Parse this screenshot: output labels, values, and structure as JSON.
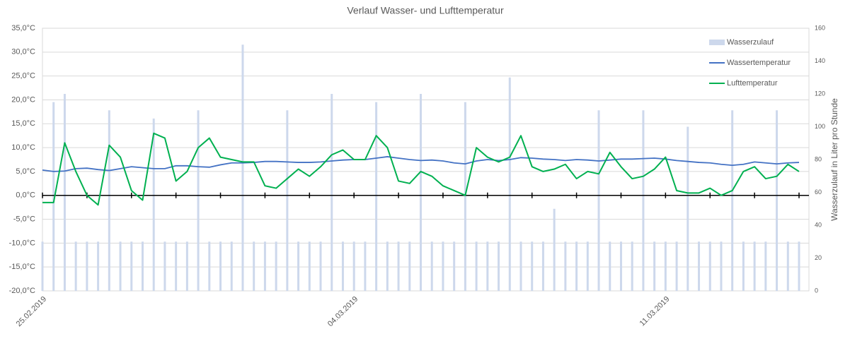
{
  "chart_data": {
    "type": "combo",
    "title": "Verlauf Wasser- und Lufttemperatur",
    "y2_label": "Wasserzulauf in Liter pro Stunde",
    "legend": "top-right",
    "grid": true,
    "categories": [
      "25.02.2019",
      null,
      null,
      null,
      null,
      null,
      null,
      null,
      null,
      null,
      null,
      null,
      null,
      null,
      null,
      null,
      null,
      null,
      null,
      null,
      null,
      null,
      null,
      null,
      null,
      null,
      null,
      null,
      "04.03.2019",
      null,
      null,
      null,
      null,
      null,
      null,
      null,
      null,
      null,
      null,
      null,
      null,
      null,
      null,
      null,
      null,
      null,
      null,
      null,
      null,
      null,
      null,
      null,
      null,
      null,
      null,
      null,
      "11.03.2019",
      null,
      null,
      null,
      null,
      null,
      null,
      null,
      null,
      null,
      null,
      null,
      null
    ],
    "ylim": [
      -20,
      35
    ],
    "yticks": [
      {
        "value": -20,
        "label": "-20,0°C"
      },
      {
        "value": -15,
        "label": "-15,0°C"
      },
      {
        "value": -10,
        "label": "-10,0°C"
      },
      {
        "value": -5,
        "label": "-5,0°C"
      },
      {
        "value": 0,
        "label": "0,0°C"
      },
      {
        "value": 5,
        "label": "5,0°C"
      },
      {
        "value": 10,
        "label": "10,0°C"
      },
      {
        "value": 15,
        "label": "15,0°C"
      },
      {
        "value": 20,
        "label": "20,0°C"
      },
      {
        "value": 25,
        "label": "25,0°C"
      },
      {
        "value": 30,
        "label": "30,0°C"
      },
      {
        "value": 35,
        "label": "35,0°C"
      }
    ],
    "y2lim": [
      0,
      160
    ],
    "y2ticks": [
      0,
      20,
      40,
      60,
      80,
      100,
      120,
      140,
      160
    ],
    "series": [
      {
        "name": "Wasserzulauf",
        "type": "bar",
        "axis": "y2",
        "color": "#cdd8ec",
        "values": [
          30,
          115,
          120,
          30,
          30,
          30,
          110,
          30,
          30,
          30,
          105,
          30,
          30,
          30,
          110,
          30,
          30,
          30,
          150,
          30,
          30,
          30,
          110,
          30,
          30,
          30,
          120,
          30,
          30,
          30,
          115,
          30,
          30,
          30,
          120,
          30,
          30,
          30,
          115,
          30,
          30,
          30,
          130,
          30,
          30,
          30,
          50,
          30,
          30,
          30,
          110,
          30,
          30,
          30,
          110,
          30,
          30,
          30,
          100,
          30,
          30,
          30,
          110,
          30,
          30,
          30,
          110,
          30,
          30
        ]
      },
      {
        "name": "Wassertemperatur",
        "type": "line",
        "color": "#4472c4",
        "values": [
          5.3,
          5.0,
          5.1,
          5.6,
          5.7,
          5.4,
          5.2,
          5.6,
          6.0,
          5.8,
          5.6,
          5.6,
          6.2,
          6.2,
          6.0,
          5.9,
          6.4,
          6.8,
          6.8,
          6.9,
          7.1,
          7.1,
          7.0,
          6.9,
          6.9,
          7.0,
          7.2,
          7.4,
          7.5,
          7.5,
          7.8,
          8.1,
          7.8,
          7.5,
          7.3,
          7.4,
          7.2,
          6.8,
          6.6,
          7.2,
          7.5,
          7.3,
          7.5,
          7.9,
          7.8,
          7.6,
          7.5,
          7.3,
          7.5,
          7.4,
          7.2,
          7.4,
          7.6,
          7.6,
          7.7,
          7.8,
          7.6,
          7.3,
          7.1,
          6.9,
          6.8,
          6.5,
          6.3,
          6.5,
          7.0,
          6.8,
          6.6,
          6.8,
          6.9
        ]
      },
      {
        "name": "Lufttemperatur",
        "type": "line",
        "color": "#00b050",
        "values": [
          -1.5,
          -1.5,
          11,
          5,
          0,
          -2,
          10.5,
          8,
          1,
          -1,
          13,
          12,
          3,
          5,
          10,
          12,
          8,
          7.5,
          7,
          7,
          2,
          1.5,
          3.5,
          5.5,
          4,
          6,
          8.5,
          9.5,
          7.5,
          7.5,
          12.5,
          10,
          3,
          2.5,
          5,
          4,
          2,
          1,
          0,
          10,
          8,
          7,
          8,
          12.5,
          6,
          5,
          5.5,
          6.5,
          3.5,
          5,
          4.5,
          9,
          6,
          3.5,
          4,
          5.5,
          8,
          1,
          0.5,
          0.5,
          1.5,
          0,
          1,
          5,
          6,
          3.5,
          4,
          6.5,
          5
        ]
      }
    ]
  }
}
